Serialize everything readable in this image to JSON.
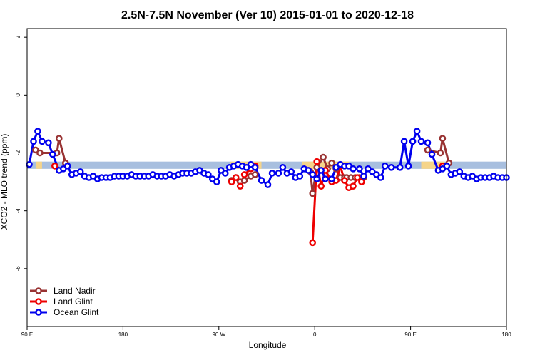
{
  "chart_data": {
    "type": "line",
    "title": "2.5N-7.5N November (Ver 10)   2015-01-01 to 2020-12-18",
    "xlabel": "Longitude",
    "ylabel": "XCO2 - MLO trend (ppm)",
    "xlim": [
      90,
      540
    ],
    "ylim": [
      -8,
      2.3
    ],
    "x_ticks": [
      {
        "value": 90,
        "label": "90 E"
      },
      {
        "value": 180,
        "label": "180"
      },
      {
        "value": 270,
        "label": "90 W"
      },
      {
        "value": 360,
        "label": "0"
      },
      {
        "value": 450,
        "label": "90 E"
      },
      {
        "value": 540,
        "label": "180"
      }
    ],
    "y_ticks": [
      {
        "value": 2,
        "label": "2"
      },
      {
        "value": 0,
        "label": "0"
      },
      {
        "value": -2,
        "label": "-2"
      },
      {
        "value": -4,
        "label": "-4"
      },
      {
        "value": -6,
        "label": "-6"
      }
    ],
    "legend_position": "bottom-left",
    "band": {
      "y_low": -2.55,
      "y_high": -2.3,
      "color": "#a8bfdf"
    },
    "land_patches": [
      {
        "x_start": 98,
        "x_end": 104,
        "color": "#f5d48a"
      },
      {
        "x_start": 281,
        "x_end": 310,
        "color": "#f5d48a"
      },
      {
        "x_start": 348,
        "x_end": 392,
        "color": "#f5d48a"
      },
      {
        "x_start": 460,
        "x_end": 482,
        "color": "#f5d48a"
      }
    ],
    "series": [
      {
        "name": "Land Nadir",
        "color": "#993333",
        "points": [
          [
            98,
            -1.9
          ],
          [
            102,
            -2.0
          ],
          [
            118,
            -2.0
          ],
          [
            120,
            -1.5
          ],
          [
            126,
            -2.35
          ],
          [
            282,
            -2.95
          ],
          [
            286,
            -2.85
          ],
          [
            290,
            -3.0
          ],
          [
            294,
            -2.95
          ],
          [
            300,
            -2.8
          ],
          [
            304,
            -2.75
          ],
          [
            356,
            -2.65
          ],
          [
            358,
            -3.4
          ],
          [
            362,
            -2.5
          ],
          [
            368,
            -2.15
          ],
          [
            372,
            -2.55
          ],
          [
            376,
            -2.35
          ],
          [
            380,
            -2.55
          ],
          [
            384,
            -2.85
          ],
          [
            388,
            -2.85
          ],
          [
            390,
            -2.85
          ],
          [
            394,
            -2.85
          ],
          [
            398,
            -2.85
          ],
          [
            402,
            -2.85
          ],
          [
            406,
            -2.85
          ],
          [
            466,
            -1.9
          ],
          [
            478,
            -2.0
          ],
          [
            480,
            -1.5
          ],
          [
            486,
            -2.35
          ]
        ]
      },
      {
        "name": "Land Glint",
        "color": "#ee0000",
        "points": [
          [
            116,
            -2.45
          ],
          [
            282,
            -3.0
          ],
          [
            286,
            -2.85
          ],
          [
            290,
            -3.15
          ],
          [
            294,
            -2.75
          ],
          [
            300,
            -2.55
          ],
          [
            304,
            -2.45
          ],
          [
            358,
            -5.1
          ],
          [
            362,
            -2.3
          ],
          [
            366,
            -3.15
          ],
          [
            370,
            -2.6
          ],
          [
            376,
            -3.0
          ],
          [
            380,
            -2.95
          ],
          [
            384,
            -2.45
          ],
          [
            388,
            -2.95
          ],
          [
            392,
            -3.2
          ],
          [
            396,
            -3.15
          ],
          [
            400,
            -2.85
          ],
          [
            404,
            -3.0
          ],
          [
            480,
            -2.45
          ]
        ]
      },
      {
        "name": "Ocean Glint",
        "color": "#0000ee",
        "points": [
          [
            92,
            -2.4
          ],
          [
            96,
            -1.6
          ],
          [
            100,
            -1.25
          ],
          [
            104,
            -1.6
          ],
          [
            110,
            -1.65
          ],
          [
            114,
            -2.05
          ],
          [
            120,
            -2.6
          ],
          [
            124,
            -2.55
          ],
          [
            128,
            -2.45
          ],
          [
            132,
            -2.75
          ],
          [
            136,
            -2.7
          ],
          [
            140,
            -2.65
          ],
          [
            144,
            -2.8
          ],
          [
            148,
            -2.85
          ],
          [
            152,
            -2.8
          ],
          [
            156,
            -2.9
          ],
          [
            160,
            -2.85
          ],
          [
            164,
            -2.85
          ],
          [
            168,
            -2.85
          ],
          [
            172,
            -2.8
          ],
          [
            176,
            -2.8
          ],
          [
            180,
            -2.8
          ],
          [
            184,
            -2.8
          ],
          [
            188,
            -2.75
          ],
          [
            192,
            -2.8
          ],
          [
            196,
            -2.8
          ],
          [
            200,
            -2.8
          ],
          [
            204,
            -2.8
          ],
          [
            208,
            -2.75
          ],
          [
            212,
            -2.8
          ],
          [
            216,
            -2.8
          ],
          [
            220,
            -2.8
          ],
          [
            224,
            -2.75
          ],
          [
            228,
            -2.8
          ],
          [
            232,
            -2.75
          ],
          [
            236,
            -2.7
          ],
          [
            240,
            -2.7
          ],
          [
            244,
            -2.7
          ],
          [
            248,
            -2.65
          ],
          [
            252,
            -2.6
          ],
          [
            256,
            -2.7
          ],
          [
            260,
            -2.75
          ],
          [
            264,
            -2.9
          ],
          [
            268,
            -3.0
          ],
          [
            272,
            -2.6
          ],
          [
            276,
            -2.7
          ],
          [
            280,
            -2.5
          ],
          [
            284,
            -2.45
          ],
          [
            288,
            -2.4
          ],
          [
            292,
            -2.45
          ],
          [
            296,
            -2.5
          ],
          [
            300,
            -2.4
          ],
          [
            304,
            -2.5
          ],
          [
            310,
            -2.95
          ],
          [
            316,
            -3.1
          ],
          [
            320,
            -2.7
          ],
          [
            326,
            -2.7
          ],
          [
            330,
            -2.5
          ],
          [
            334,
            -2.7
          ],
          [
            338,
            -2.65
          ],
          [
            342,
            -2.85
          ],
          [
            346,
            -2.8
          ],
          [
            350,
            -2.55
          ],
          [
            354,
            -2.6
          ],
          [
            358,
            -2.75
          ],
          [
            362,
            -2.9
          ],
          [
            366,
            -2.6
          ],
          [
            370,
            -2.9
          ],
          [
            376,
            -2.9
          ],
          [
            380,
            -2.5
          ],
          [
            384,
            -2.4
          ],
          [
            388,
            -2.45
          ],
          [
            392,
            -2.45
          ],
          [
            396,
            -2.55
          ],
          [
            402,
            -2.55
          ],
          [
            406,
            -2.8
          ],
          [
            410,
            -2.55
          ],
          [
            414,
            -2.65
          ],
          [
            418,
            -2.75
          ],
          [
            422,
            -2.85
          ],
          [
            426,
            -2.45
          ],
          [
            432,
            -2.5
          ],
          [
            440,
            -2.5
          ],
          [
            444,
            -1.6
          ],
          [
            448,
            -2.45
          ],
          [
            452,
            -1.6
          ],
          [
            456,
            -1.25
          ],
          [
            460,
            -1.6
          ],
          [
            466,
            -1.65
          ],
          [
            470,
            -2.05
          ],
          [
            476,
            -2.6
          ],
          [
            480,
            -2.55
          ],
          [
            484,
            -2.45
          ],
          [
            488,
            -2.75
          ],
          [
            492,
            -2.7
          ],
          [
            496,
            -2.65
          ],
          [
            500,
            -2.8
          ],
          [
            504,
            -2.85
          ],
          [
            508,
            -2.8
          ],
          [
            512,
            -2.9
          ],
          [
            516,
            -2.85
          ],
          [
            520,
            -2.85
          ],
          [
            524,
            -2.85
          ],
          [
            528,
            -2.8
          ],
          [
            532,
            -2.85
          ],
          [
            536,
            -2.85
          ],
          [
            540,
            -2.85
          ]
        ]
      }
    ]
  }
}
